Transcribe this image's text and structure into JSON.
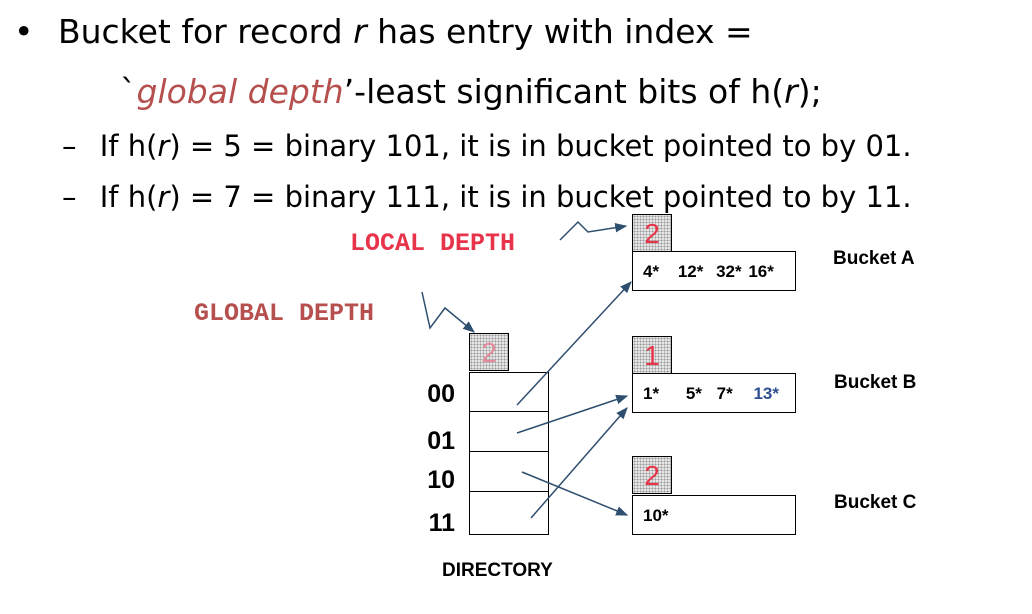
{
  "bullets": {
    "main_pre": "Bucket for record ",
    "main_r": "r",
    "main_post": " has entry with index =",
    "sub_quote": "`",
    "sub_accent": "global depth",
    "sub_post_a": "’-least significant bits of h(",
    "sub_r": "r",
    "sub_post_b": ");",
    "dash1_a": "If h(",
    "dash1_r": "r",
    "dash1_b": ") = 5 = binary 101,  it is in bucket pointed to by 01.",
    "dash2_a": "If h(",
    "dash2_r": "r",
    "dash2_b": ") = 7 = binary 111,  it is in bucket pointed to by 11."
  },
  "labels": {
    "local_depth": "LOCAL DEPTH",
    "global_depth": "GLOBAL DEPTH",
    "directory": "DIRECTORY"
  },
  "directory": {
    "global_depth": "2",
    "entries": [
      "00",
      "01",
      "10",
      "11"
    ]
  },
  "buckets": [
    {
      "name": "Bucket A",
      "local_depth": "2",
      "entries": [
        "4*",
        "12*",
        "32*",
        "16*"
      ]
    },
    {
      "name": "Bucket B",
      "local_depth": "1",
      "entries": [
        "1*",
        "5*",
        "7*",
        "13*"
      ]
    },
    {
      "name": "Bucket C",
      "local_depth": "2",
      "entries": [
        "10*"
      ]
    }
  ],
  "colors": {
    "accent_text": "#b5504f",
    "depth_digit": "#e8344a",
    "label_red": "#e8344a",
    "label_dark_red": "#b5504f",
    "highlight_entry": "#2f4f8f",
    "arrow": "#2f4f6f"
  }
}
